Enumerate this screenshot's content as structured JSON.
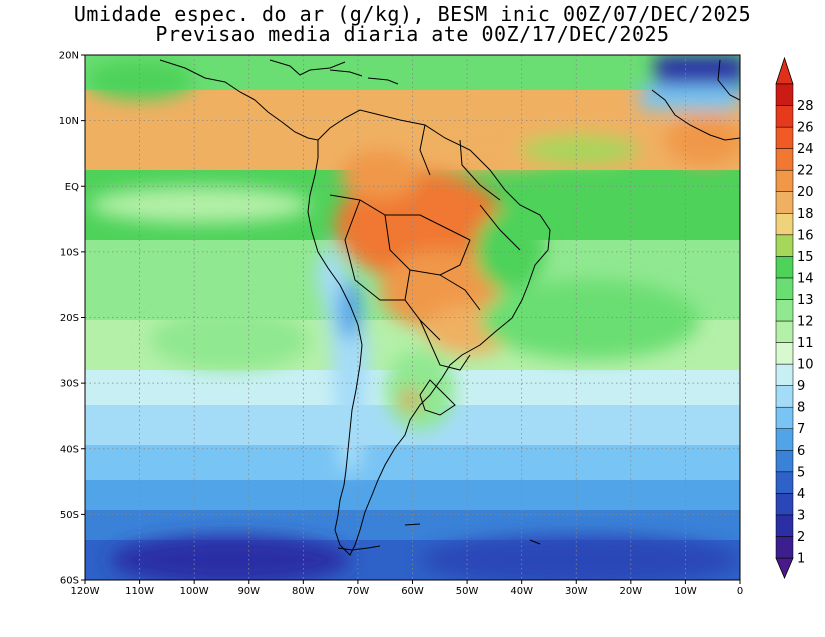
{
  "title_line1": "Umidade espec. do ar (g/kg), BESM inic 00Z/07/DEC/2025",
  "title_line2": "Previsao media diaria ate 00Z/17/DEC/2025",
  "map": {
    "lat_labels": [
      "20N",
      "10N",
      "EQ",
      "10S",
      "20S",
      "30S",
      "40S",
      "50S",
      "60S"
    ],
    "lon_labels": [
      "120W",
      "110W",
      "100W",
      "90W",
      "80W",
      "70W",
      "60W",
      "50W",
      "40W",
      "30W",
      "20W",
      "10W",
      "0"
    ]
  },
  "colorbar": {
    "labels": [
      "1",
      "2",
      "3",
      "4",
      "5",
      "6",
      "7",
      "8",
      "9",
      "10",
      "11",
      "12",
      "13",
      "14",
      "15",
      "16",
      "18",
      "20",
      "22",
      "24",
      "26",
      "28"
    ],
    "colors": [
      "#3b1f8f",
      "#2c2ea6",
      "#2a46b8",
      "#2e62c8",
      "#3a82d8",
      "#52a4e8",
      "#78c4f4",
      "#a4dcf8",
      "#c8f0f4",
      "#d8f8d0",
      "#b4f0a8",
      "#90e890",
      "#6ade72",
      "#4ed25a",
      "#a6d65a",
      "#f0d27a",
      "#f0b062",
      "#f09848",
      "#f07832",
      "#f05a24",
      "#e63a1c",
      "#cc1a14"
    ],
    "arrow_low": "#4a1a8a",
    "arrow_high": "#e0301a"
  }
}
